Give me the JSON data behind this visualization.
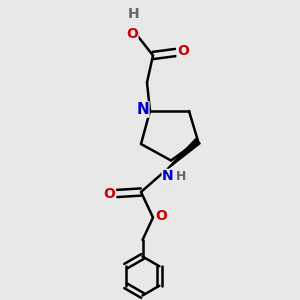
{
  "bg_color": "#e8e8e8",
  "atom_colors": {
    "C": "#000000",
    "N": "#0000cc",
    "O": "#cc0000",
    "H": "#666666"
  },
  "bond_color": "#000000",
  "bond_width": 1.8,
  "figsize": [
    3.0,
    3.0
  ],
  "dpi": 100,
  "xlim": [
    0,
    10
  ],
  "ylim": [
    0,
    10
  ],
  "font_size": 10
}
